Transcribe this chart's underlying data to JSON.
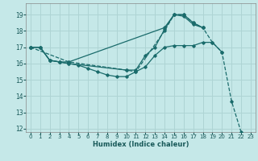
{
  "title": "",
  "xlabel": "Humidex (Indice chaleur)",
  "background_color": "#c5e8e8",
  "grid_color": "#aed4d4",
  "line_color": "#1a6b6b",
  "xlim": [
    -0.5,
    23.5
  ],
  "ylim": [
    11.8,
    19.7
  ],
  "yticks": [
    12,
    13,
    14,
    15,
    16,
    17,
    18,
    19
  ],
  "xticks": [
    0,
    1,
    2,
    3,
    4,
    5,
    6,
    7,
    8,
    9,
    10,
    11,
    12,
    13,
    14,
    15,
    16,
    17,
    18,
    19,
    20,
    21,
    22,
    23
  ],
  "s1x": [
    0,
    1,
    2,
    3,
    4,
    5,
    6,
    7,
    8,
    9,
    10,
    11,
    12,
    13,
    14,
    15,
    16,
    17,
    18,
    19,
    20
  ],
  "s1y": [
    17.0,
    17.0,
    16.2,
    16.1,
    16.0,
    15.9,
    15.7,
    15.5,
    15.3,
    15.2,
    15.2,
    15.5,
    15.8,
    16.5,
    17.0,
    17.1,
    17.1,
    17.1,
    17.3,
    17.3,
    16.7
  ],
  "s2x": [
    0,
    1,
    2,
    3,
    4,
    10,
    11,
    12,
    13,
    14,
    15,
    16,
    17,
    18
  ],
  "s2y": [
    17.0,
    17.0,
    16.2,
    16.1,
    16.0,
    15.6,
    15.6,
    16.5,
    17.0,
    18.1,
    19.0,
    18.9,
    18.4,
    18.2
  ],
  "s3x": [
    0,
    1,
    2,
    3,
    4,
    14,
    15,
    16,
    17,
    18
  ],
  "s3y": [
    17.0,
    17.0,
    16.2,
    16.1,
    16.1,
    18.2,
    19.0,
    19.0,
    18.5,
    18.2
  ],
  "s4x": [
    0,
    4,
    10,
    11,
    14,
    15,
    16,
    17,
    18,
    19,
    20,
    21,
    22
  ],
  "s4y": [
    17.0,
    16.1,
    15.6,
    15.5,
    18.0,
    19.0,
    19.0,
    18.5,
    18.2,
    17.3,
    16.7,
    13.7,
    11.8
  ]
}
